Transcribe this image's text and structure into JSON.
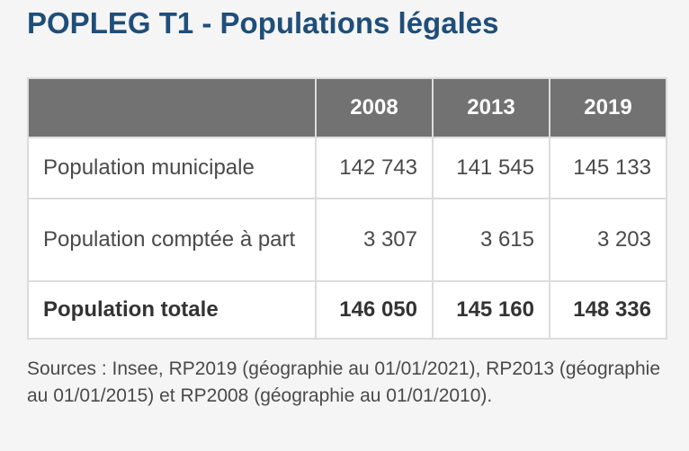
{
  "title": "POPLEG T1 - Populations légales",
  "table": {
    "columns": [
      "2008",
      "2013",
      "2019"
    ],
    "rows": [
      {
        "label": "Population municipale",
        "values": [
          "142 743",
          "141 545",
          "145 133"
        ]
      },
      {
        "label": "Population comptée à part",
        "values": [
          "3 307",
          "3 615",
          "3 203"
        ]
      },
      {
        "label": "Population totale",
        "values": [
          "146 050",
          "145 160",
          "148 336"
        ]
      }
    ]
  },
  "sources": "Sources : Insee, RP2019 (géographie au 01/01/2021), RP2013 (géographie au 01/01/2015) et RP2008 (géographie au 01/01/2010)."
}
